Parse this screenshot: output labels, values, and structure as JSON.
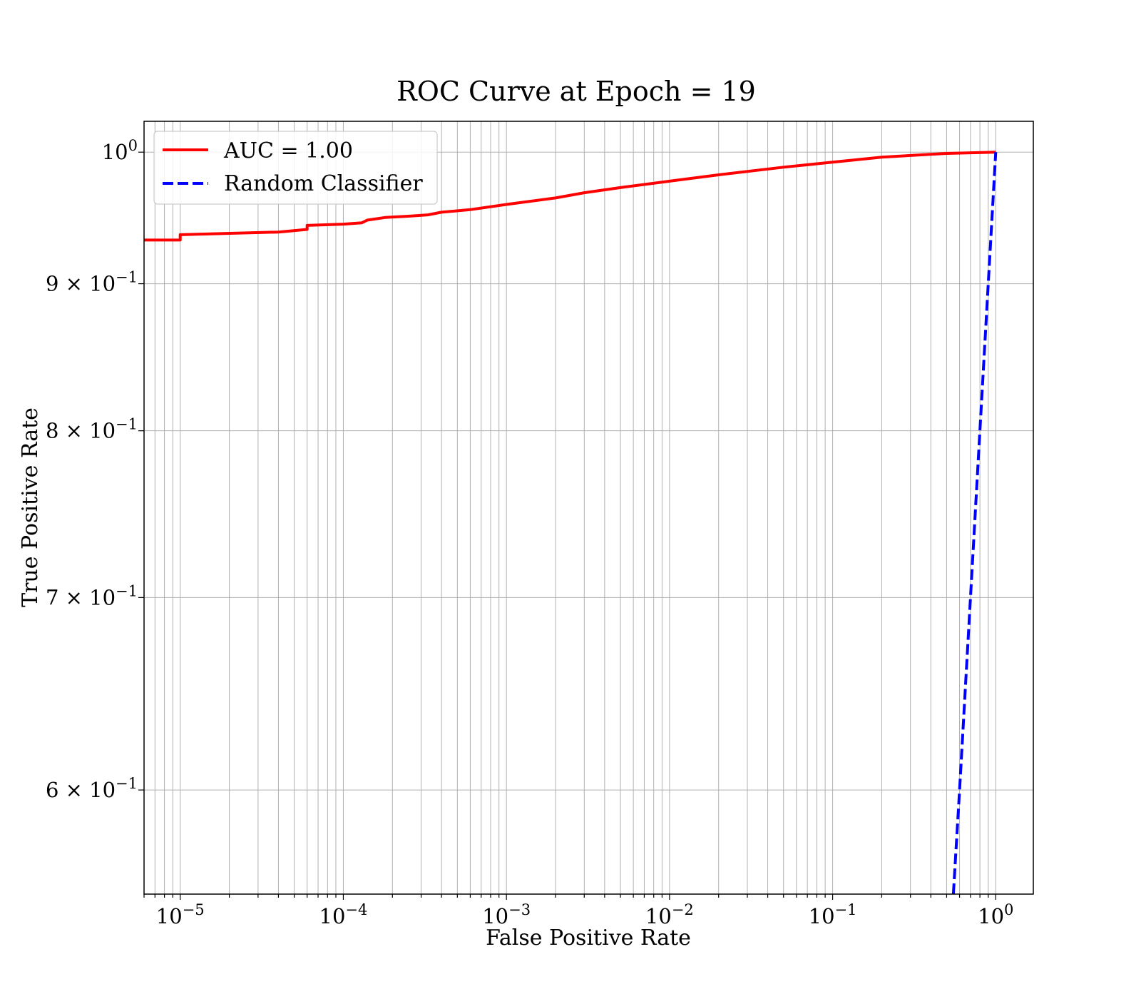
{
  "chart_data": {
    "type": "line",
    "title": "ROC Curve at Epoch = 19",
    "xlabel": "False Positive Rate",
    "ylabel": "True Positive Rate",
    "xscale": "log",
    "yscale": "log",
    "xlim": [
      6e-06,
      1.7
    ],
    "ylim": [
      0.552,
      1.025
    ],
    "grid": "both major and minor",
    "legend_position": "top-left",
    "x_ticks": [
      {
        "base": "10",
        "exp": "−5"
      },
      {
        "base": "10",
        "exp": "−4"
      },
      {
        "base": "10",
        "exp": "−3"
      },
      {
        "base": "10",
        "exp": "−2"
      },
      {
        "base": "10",
        "exp": "−1"
      },
      {
        "base": "10",
        "exp": "0"
      }
    ],
    "y_ticks": [
      {
        "mant": "",
        "base": "10",
        "exp": "0"
      },
      {
        "mant": "9",
        "base": "10",
        "exp": "−1"
      },
      {
        "mant": "8",
        "base": "10",
        "exp": "−1"
      },
      {
        "mant": "7",
        "base": "10",
        "exp": "−1"
      },
      {
        "mant": "6",
        "base": "10",
        "exp": "−1"
      }
    ],
    "series": [
      {
        "name": "AUC = 1.00",
        "color": "#ff0000",
        "style": "solid",
        "x": [
          6e-06,
          1e-05,
          1e-05,
          4e-05,
          6e-05,
          6e-05,
          0.0001,
          0.00013,
          0.00014,
          0.00018,
          0.00025,
          0.00033,
          0.0004,
          0.0006,
          0.001,
          0.002,
          0.003,
          0.005,
          0.01,
          0.02,
          0.05,
          0.1,
          0.2,
          0.5,
          1.0
        ],
        "y": [
          0.932,
          0.932,
          0.936,
          0.938,
          0.94,
          0.943,
          0.944,
          0.945,
          0.947,
          0.949,
          0.95,
          0.951,
          0.953,
          0.955,
          0.959,
          0.964,
          0.968,
          0.972,
          0.977,
          0.982,
          0.988,
          0.992,
          0.996,
          0.999,
          1.0
        ]
      },
      {
        "name": "Random Classifier",
        "color": "#0000ff",
        "style": "dashed",
        "x": [
          0.55,
          0.6,
          0.7,
          0.8,
          0.9,
          1.0
        ],
        "y": [
          0.55,
          0.6,
          0.7,
          0.8,
          0.9,
          1.0
        ]
      }
    ]
  }
}
